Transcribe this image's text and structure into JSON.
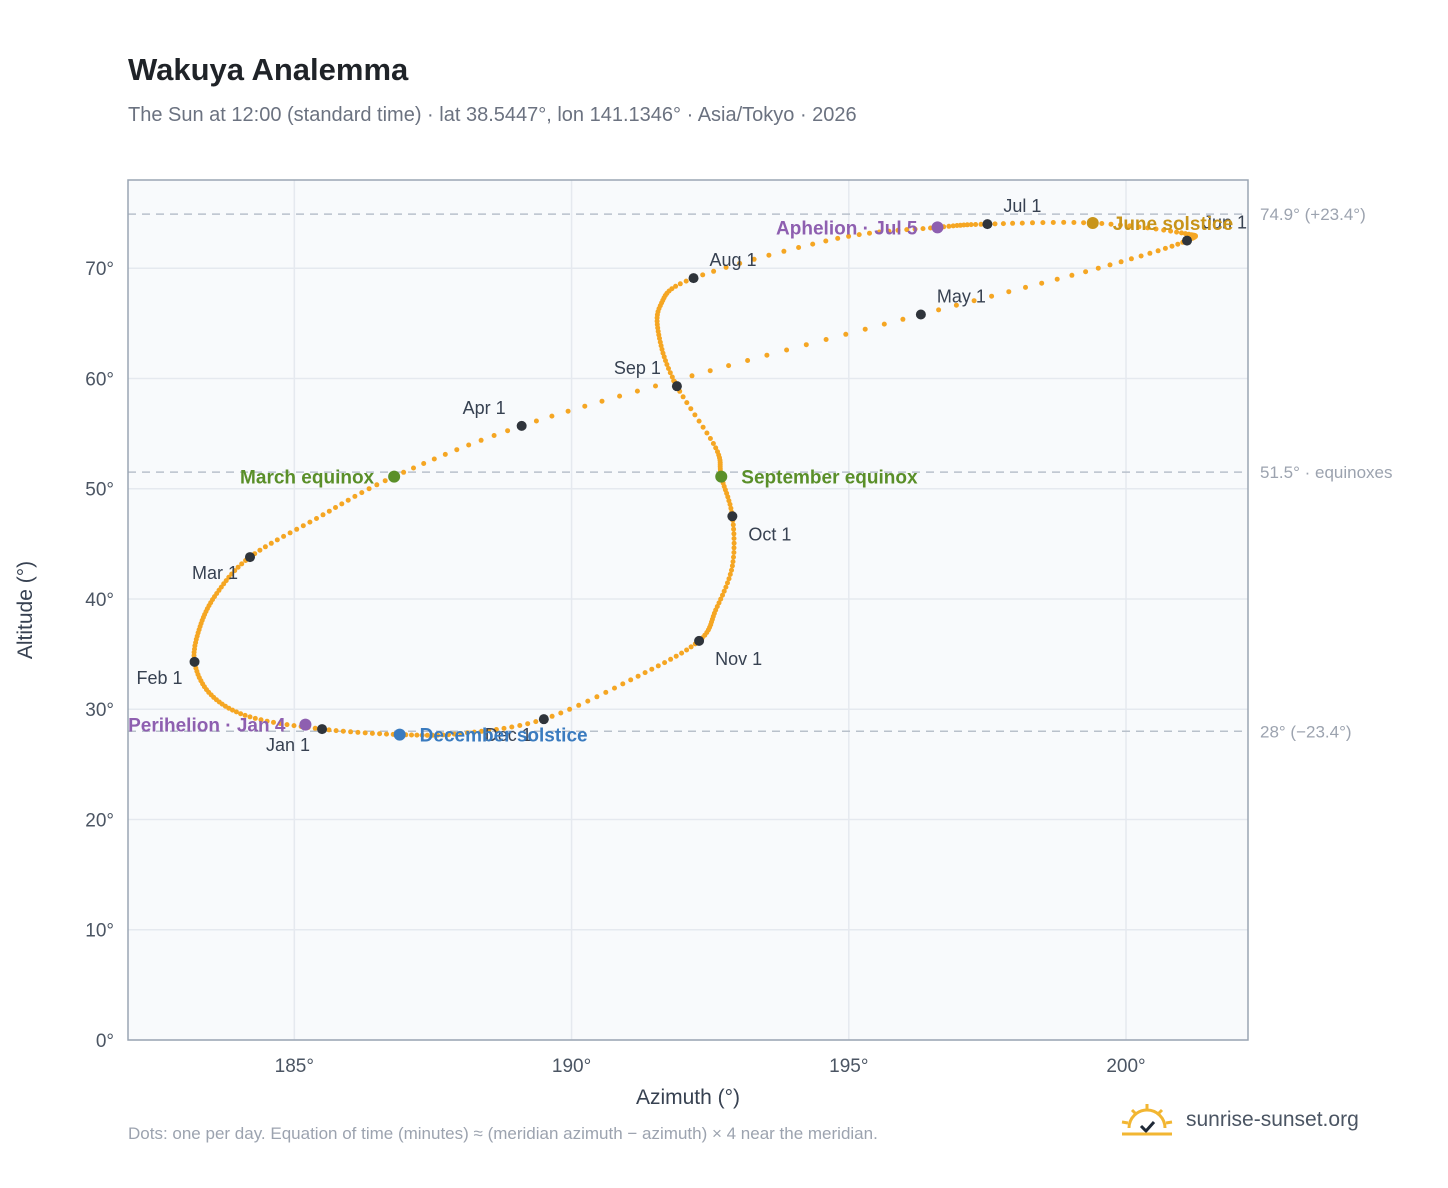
{
  "header": {
    "title": "Wakuya Analemma",
    "subtitle": "The Sun at 12:00 (standard time) · lat 38.5447°, lon 141.1346° · Asia/Tokyo · 2026"
  },
  "footer": {
    "note": "Dots: one per day. Equation of time (minutes) ≈ (meridian azimuth − azimuth) × 4 near the meridian.",
    "brand": "sunrise-sunset.org",
    "brand_icon": "sun-logo-icon"
  },
  "colors": {
    "curve": "#f5a623",
    "month_dot": "#2f343b",
    "equinox": "#5a8f29",
    "june_solstice": "#c8941a",
    "december_solstice": "#3a7bbf",
    "apsis": "#8e5fb0",
    "plot_bg": "#f8fafc",
    "grid": "#e5e9ef",
    "ref_line": "#b9c1cb"
  },
  "chart_data": {
    "type": "scatter",
    "xlabel": "Azimuth (°)",
    "ylabel": "Altitude (°)",
    "xlim": [
      182,
      202.2
    ],
    "ylim": [
      0,
      78
    ],
    "xticks": [
      185,
      190,
      195,
      200
    ],
    "xtick_labels": [
      "185°",
      "190°",
      "195°",
      "200°"
    ],
    "yticks": [
      0,
      10,
      20,
      30,
      40,
      50,
      60,
      70
    ],
    "ytick_labels": [
      "0°",
      "10°",
      "20°",
      "30°",
      "40°",
      "50°",
      "60°",
      "70°"
    ],
    "grid": true,
    "reference_lines": [
      {
        "y": 74.9,
        "label": "74.9° (+23.4°)"
      },
      {
        "y": 51.5,
        "label": "51.5° · equinoxes"
      },
      {
        "y": 28.0,
        "label": "28° (−23.4°)"
      }
    ],
    "daily_path": [
      {
        "az": 185.5,
        "alt": 28.2
      },
      {
        "az": 184.2,
        "alt": 29.3
      },
      {
        "az": 183.5,
        "alt": 31.3
      },
      {
        "az": 183.2,
        "alt": 34.3
      },
      {
        "az": 183.3,
        "alt": 37.5
      },
      {
        "az": 183.6,
        "alt": 40.5
      },
      {
        "az": 184.2,
        "alt": 43.8
      },
      {
        "az": 185.4,
        "alt": 47.3
      },
      {
        "az": 186.8,
        "alt": 51.1
      },
      {
        "az": 189.1,
        "alt": 55.7
      },
      {
        "az": 192.5,
        "alt": 60.7
      },
      {
        "az": 196.3,
        "alt": 65.8
      },
      {
        "az": 199.5,
        "alt": 70.0
      },
      {
        "az": 201.1,
        "alt": 72.5
      },
      {
        "az": 201.0,
        "alt": 73.2
      },
      {
        "az": 199.4,
        "alt": 74.1
      },
      {
        "az": 197.5,
        "alt": 74.0
      },
      {
        "az": 196.6,
        "alt": 73.7
      },
      {
        "az": 194.8,
        "alt": 72.7
      },
      {
        "az": 192.2,
        "alt": 69.1
      },
      {
        "az": 191.6,
        "alt": 66.6
      },
      {
        "az": 191.6,
        "alt": 63.3
      },
      {
        "az": 191.9,
        "alt": 59.3
      },
      {
        "az": 192.6,
        "alt": 53.7
      },
      {
        "az": 192.7,
        "alt": 51.1
      },
      {
        "az": 192.9,
        "alt": 47.5
      },
      {
        "az": 192.9,
        "alt": 43.0
      },
      {
        "az": 192.6,
        "alt": 39.0
      },
      {
        "az": 192.3,
        "alt": 36.2
      },
      {
        "az": 191.2,
        "alt": 33.0
      },
      {
        "az": 189.5,
        "alt": 29.1
      },
      {
        "az": 188.0,
        "alt": 27.8
      },
      {
        "az": 186.9,
        "alt": 27.7
      },
      {
        "az": 185.5,
        "alt": 28.2
      }
    ],
    "month_markers": [
      {
        "label": "Jan 1",
        "az": 185.5,
        "alt": 28.2,
        "label_pos": "below-left"
      },
      {
        "label": "Feb 1",
        "az": 183.2,
        "alt": 34.3,
        "label_pos": "below-left"
      },
      {
        "label": "Mar 1",
        "az": 184.2,
        "alt": 43.8,
        "label_pos": "below-left"
      },
      {
        "label": "Apr 1",
        "az": 189.1,
        "alt": 55.7,
        "label_pos": "above-left"
      },
      {
        "label": "May 1",
        "az": 196.3,
        "alt": 65.8,
        "label_pos": "above-right"
      },
      {
        "label": "Jun 1",
        "az": 201.1,
        "alt": 72.5,
        "label_pos": "above-right"
      },
      {
        "label": "Jul 1",
        "az": 197.5,
        "alt": 74.0,
        "label_pos": "above-right"
      },
      {
        "label": "Aug 1",
        "az": 192.2,
        "alt": 69.1,
        "label_pos": "above-right"
      },
      {
        "label": "Sep 1",
        "az": 191.9,
        "alt": 59.3,
        "label_pos": "above-left"
      },
      {
        "label": "Oct 1",
        "az": 192.9,
        "alt": 47.5,
        "label_pos": "below-right"
      },
      {
        "label": "Nov 1",
        "az": 192.3,
        "alt": 36.2,
        "label_pos": "below-right"
      },
      {
        "label": "Dec 1",
        "az": 189.5,
        "alt": 29.1,
        "label_pos": "below-left"
      }
    ],
    "events": [
      {
        "label": "March equinox",
        "az": 186.8,
        "alt": 51.1,
        "color_key": "equinox",
        "label_pos": "left"
      },
      {
        "label": "September equinox",
        "az": 192.7,
        "alt": 51.1,
        "color_key": "equinox",
        "label_pos": "right"
      },
      {
        "label": "June solstice",
        "az": 199.4,
        "alt": 74.1,
        "color_key": "june_solstice",
        "label_pos": "right"
      },
      {
        "label": "December solstice",
        "az": 186.9,
        "alt": 27.7,
        "color_key": "december_solstice",
        "label_pos": "right"
      },
      {
        "label": "Perihelion · Jan 4",
        "az": 185.2,
        "alt": 28.6,
        "color_key": "apsis",
        "label_pos": "left"
      },
      {
        "label": "Aphelion · Jul 5",
        "az": 196.6,
        "alt": 73.7,
        "color_key": "apsis",
        "label_pos": "left"
      }
    ]
  }
}
